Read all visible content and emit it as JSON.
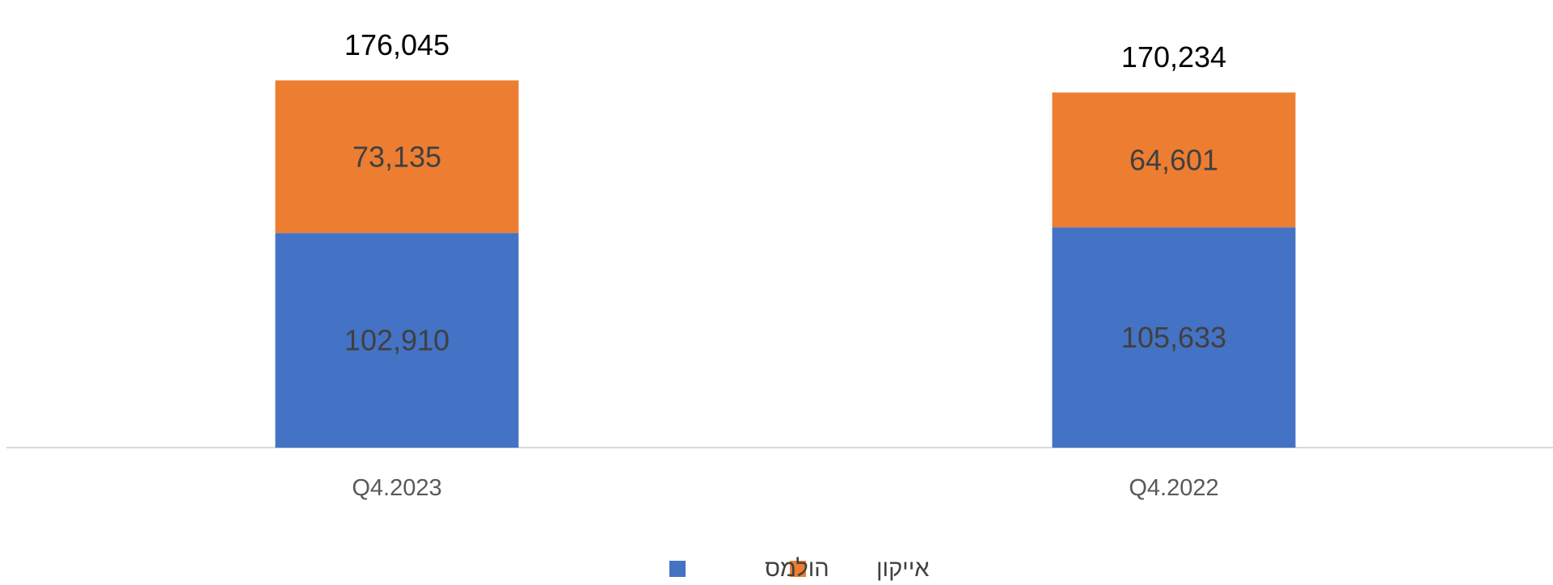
{
  "chart_data": {
    "type": "bar",
    "stacked": true,
    "categories": [
      "Q4.2023",
      "Q4.2022"
    ],
    "series": [
      {
        "name": "הולמס",
        "values": [
          102910,
          105633
        ],
        "labels": [
          "102,910",
          "105,633"
        ],
        "color": "#4472C4"
      },
      {
        "name": "אייקון",
        "values": [
          73135,
          64601
        ],
        "labels": [
          "73,135",
          "64,601"
        ],
        "color": "#ED7D31"
      }
    ],
    "totals": [
      176045,
      170234
    ],
    "total_labels": [
      "176,045",
      "170,234"
    ],
    "ylim": [
      0,
      177000
    ],
    "title": "",
    "xlabel": "",
    "ylabel": "",
    "grid": false,
    "legend": {
      "position": "bottom",
      "order": [
        "אייקון",
        "הולמס"
      ]
    },
    "colors": {
      "axis": "#D9D9D9",
      "segment_label": "#404040",
      "total_label": "#000000",
      "tick_label": "#595959",
      "legend_text": "#404040"
    }
  }
}
